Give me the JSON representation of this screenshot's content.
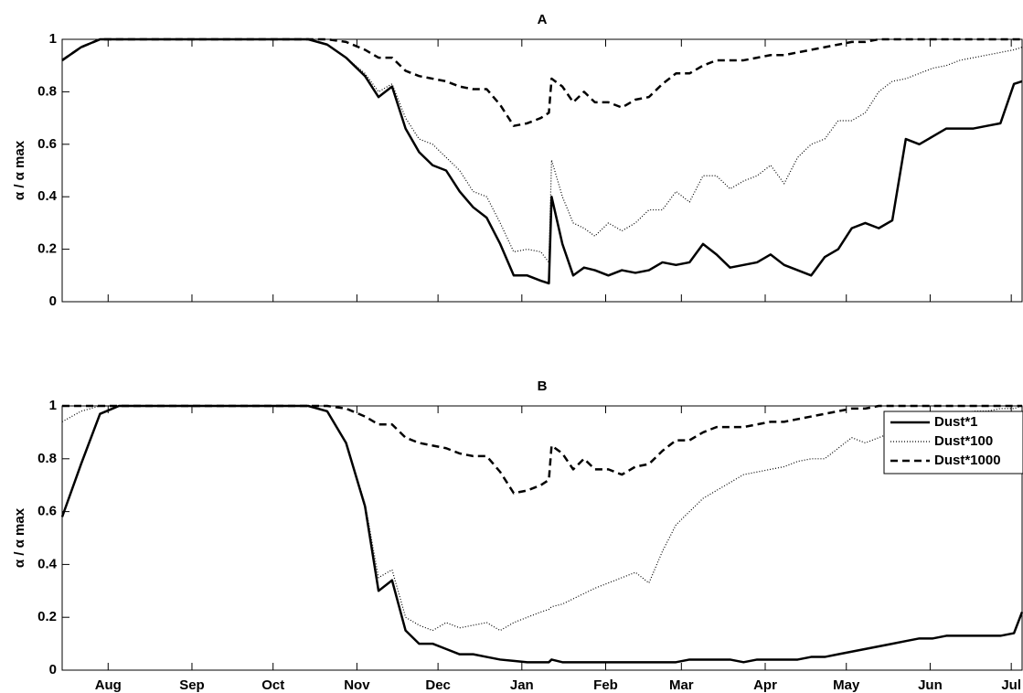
{
  "chart_data": [
    {
      "type": "line",
      "title": "A",
      "ylabel": "α / α max",
      "x": [
        -17,
        -10,
        -3,
        4,
        11,
        18,
        25,
        32,
        39,
        46,
        53,
        60,
        67,
        74,
        81,
        88,
        95,
        100,
        105,
        110,
        115,
        120,
        125,
        130,
        135,
        140,
        145,
        150,
        155,
        160,
        163,
        164,
        168,
        172,
        176,
        180,
        185,
        190,
        195,
        200,
        205,
        210,
        215,
        220,
        225,
        230,
        235,
        240,
        245,
        250,
        255,
        260,
        265,
        270,
        275,
        280,
        285,
        290,
        295,
        300,
        305,
        310,
        315,
        320,
        325,
        330,
        335,
        338
      ],
      "xlim": [
        -17,
        338
      ],
      "xticks": [
        0,
        31,
        61,
        92,
        122,
        153,
        184,
        212,
        243,
        273,
        304,
        334
      ],
      "ylim": [
        0,
        1
      ],
      "yticks": [
        0,
        0.2,
        0.4,
        0.6,
        0.8,
        1
      ],
      "series": [
        {
          "color": "#000000",
          "style": "solid",
          "values": [
            0.92,
            0.97,
            1,
            1,
            1,
            1,
            1,
            1,
            1,
            1,
            1,
            1,
            1,
            1,
            0.98,
            0.93,
            0.86,
            0.78,
            0.82,
            0.66,
            0.57,
            0.52,
            0.5,
            0.42,
            0.36,
            0.32,
            0.22,
            0.1,
            0.1,
            0.08,
            0.07,
            0.4,
            0.22,
            0.1,
            0.13,
            0.12,
            0.1,
            0.12,
            0.11,
            0.12,
            0.15,
            0.14,
            0.15,
            0.22,
            0.18,
            0.13,
            0.14,
            0.15,
            0.18,
            0.14,
            0.12,
            0.1,
            0.17,
            0.2,
            0.28,
            0.3,
            0.28,
            0.31,
            0.62,
            0.6,
            0.63,
            0.66,
            0.66,
            0.66,
            0.67,
            0.68,
            0.83,
            0.84
          ]
        },
        {
          "color": "#000000",
          "style": "dotted",
          "values": [
            0.92,
            0.97,
            1,
            1,
            1,
            1,
            1,
            1,
            1,
            1,
            1,
            1,
            1,
            1,
            0.98,
            0.93,
            0.87,
            0.8,
            0.83,
            0.7,
            0.62,
            0.6,
            0.55,
            0.5,
            0.42,
            0.4,
            0.3,
            0.19,
            0.2,
            0.19,
            0.15,
            0.54,
            0.4,
            0.3,
            0.28,
            0.25,
            0.3,
            0.27,
            0.3,
            0.35,
            0.35,
            0.42,
            0.38,
            0.48,
            0.48,
            0.43,
            0.46,
            0.48,
            0.52,
            0.45,
            0.55,
            0.6,
            0.62,
            0.69,
            0.69,
            0.72,
            0.8,
            0.84,
            0.85,
            0.87,
            0.89,
            0.9,
            0.92,
            0.93,
            0.94,
            0.95,
            0.96,
            0.97
          ]
        },
        {
          "color": "#000000",
          "style": "dashed",
          "values": [
            0.92,
            0.97,
            1,
            1,
            1,
            1,
            1,
            1,
            1,
            1,
            1,
            1,
            1,
            1,
            1,
            0.99,
            0.96,
            0.93,
            0.93,
            0.88,
            0.86,
            0.85,
            0.84,
            0.82,
            0.81,
            0.81,
            0.75,
            0.67,
            0.68,
            0.7,
            0.72,
            0.85,
            0.82,
            0.76,
            0.8,
            0.76,
            0.76,
            0.74,
            0.77,
            0.78,
            0.83,
            0.87,
            0.87,
            0.9,
            0.92,
            0.92,
            0.92,
            0.93,
            0.94,
            0.94,
            0.95,
            0.96,
            0.97,
            0.98,
            0.99,
            0.99,
            1,
            1,
            1,
            1,
            1,
            1,
            1,
            1,
            1,
            1,
            1,
            1
          ]
        }
      ]
    },
    {
      "type": "line",
      "title": "B",
      "ylabel": "α / α max",
      "x": [
        -17,
        -10,
        -3,
        4,
        11,
        18,
        25,
        32,
        39,
        46,
        53,
        60,
        67,
        74,
        81,
        88,
        95,
        100,
        105,
        110,
        115,
        120,
        125,
        130,
        135,
        140,
        145,
        150,
        155,
        160,
        163,
        164,
        168,
        172,
        176,
        180,
        185,
        190,
        195,
        200,
        205,
        210,
        215,
        220,
        225,
        230,
        235,
        240,
        245,
        250,
        255,
        260,
        265,
        270,
        275,
        280,
        285,
        290,
        295,
        300,
        305,
        310,
        315,
        320,
        325,
        330,
        335,
        338
      ],
      "xlim": [
        -17,
        338
      ],
      "xticks": [
        {
          "value": 0,
          "label": "Aug"
        },
        {
          "value": 31,
          "label": "Sep"
        },
        {
          "value": 61,
          "label": "Oct"
        },
        {
          "value": 92,
          "label": "Nov"
        },
        {
          "value": 122,
          "label": "Dec"
        },
        {
          "value": 153,
          "label": "Jan"
        },
        {
          "value": 184,
          "label": "Feb"
        },
        {
          "value": 212,
          "label": "Mar"
        },
        {
          "value": 243,
          "label": "Apr"
        },
        {
          "value": 273,
          "label": "May"
        },
        {
          "value": 304,
          "label": "Jun"
        },
        {
          "value": 334,
          "label": "Jul"
        }
      ],
      "ylim": [
        0,
        1
      ],
      "yticks": [
        0,
        0.2,
        0.4,
        0.6,
        0.8,
        1
      ],
      "legend": "upper right",
      "series": [
        {
          "name": "Dust*1",
          "color": "#000000",
          "style": "solid",
          "values": [
            0.58,
            0.78,
            0.97,
            1,
            1,
            1,
            1,
            1,
            1,
            1,
            1,
            1,
            1,
            1,
            0.98,
            0.86,
            0.62,
            0.3,
            0.34,
            0.15,
            0.1,
            0.1,
            0.08,
            0.06,
            0.06,
            0.05,
            0.04,
            0.035,
            0.03,
            0.03,
            0.03,
            0.04,
            0.03,
            0.03,
            0.03,
            0.03,
            0.03,
            0.03,
            0.03,
            0.03,
            0.03,
            0.03,
            0.04,
            0.04,
            0.04,
            0.04,
            0.03,
            0.04,
            0.04,
            0.04,
            0.04,
            0.05,
            0.05,
            0.06,
            0.07,
            0.08,
            0.09,
            0.1,
            0.11,
            0.12,
            0.12,
            0.13,
            0.13,
            0.13,
            0.13,
            0.13,
            0.14,
            0.22
          ]
        },
        {
          "name": "Dust*100",
          "color": "#000000",
          "style": "dotted",
          "values": [
            0.94,
            0.98,
            1,
            1,
            1,
            1,
            1,
            1,
            1,
            1,
            1,
            1,
            1,
            1,
            0.98,
            0.86,
            0.63,
            0.35,
            0.38,
            0.2,
            0.17,
            0.15,
            0.18,
            0.16,
            0.17,
            0.18,
            0.15,
            0.18,
            0.2,
            0.22,
            0.23,
            0.24,
            0.25,
            0.27,
            0.29,
            0.31,
            0.33,
            0.35,
            0.37,
            0.33,
            0.45,
            0.55,
            0.6,
            0.65,
            0.68,
            0.71,
            0.74,
            0.75,
            0.76,
            0.77,
            0.79,
            0.8,
            0.8,
            0.84,
            0.88,
            0.86,
            0.88,
            0.9,
            0.92,
            0.94,
            0.95,
            0.96,
            0.97,
            0.98,
            0.98,
            0.99,
            0.99,
            1
          ]
        },
        {
          "name": "Dust*1000",
          "color": "#000000",
          "style": "dashed",
          "values": [
            1,
            1,
            1,
            1,
            1,
            1,
            1,
            1,
            1,
            1,
            1,
            1,
            1,
            1,
            1,
            0.99,
            0.96,
            0.93,
            0.93,
            0.88,
            0.86,
            0.85,
            0.84,
            0.82,
            0.81,
            0.81,
            0.75,
            0.67,
            0.68,
            0.7,
            0.72,
            0.85,
            0.82,
            0.76,
            0.8,
            0.76,
            0.76,
            0.74,
            0.77,
            0.78,
            0.83,
            0.87,
            0.87,
            0.9,
            0.92,
            0.92,
            0.92,
            0.93,
            0.94,
            0.94,
            0.95,
            0.96,
            0.97,
            0.98,
            0.99,
            0.99,
            1,
            1,
            1,
            1,
            1,
            1,
            1,
            1,
            1,
            1,
            1,
            1
          ]
        }
      ]
    }
  ]
}
